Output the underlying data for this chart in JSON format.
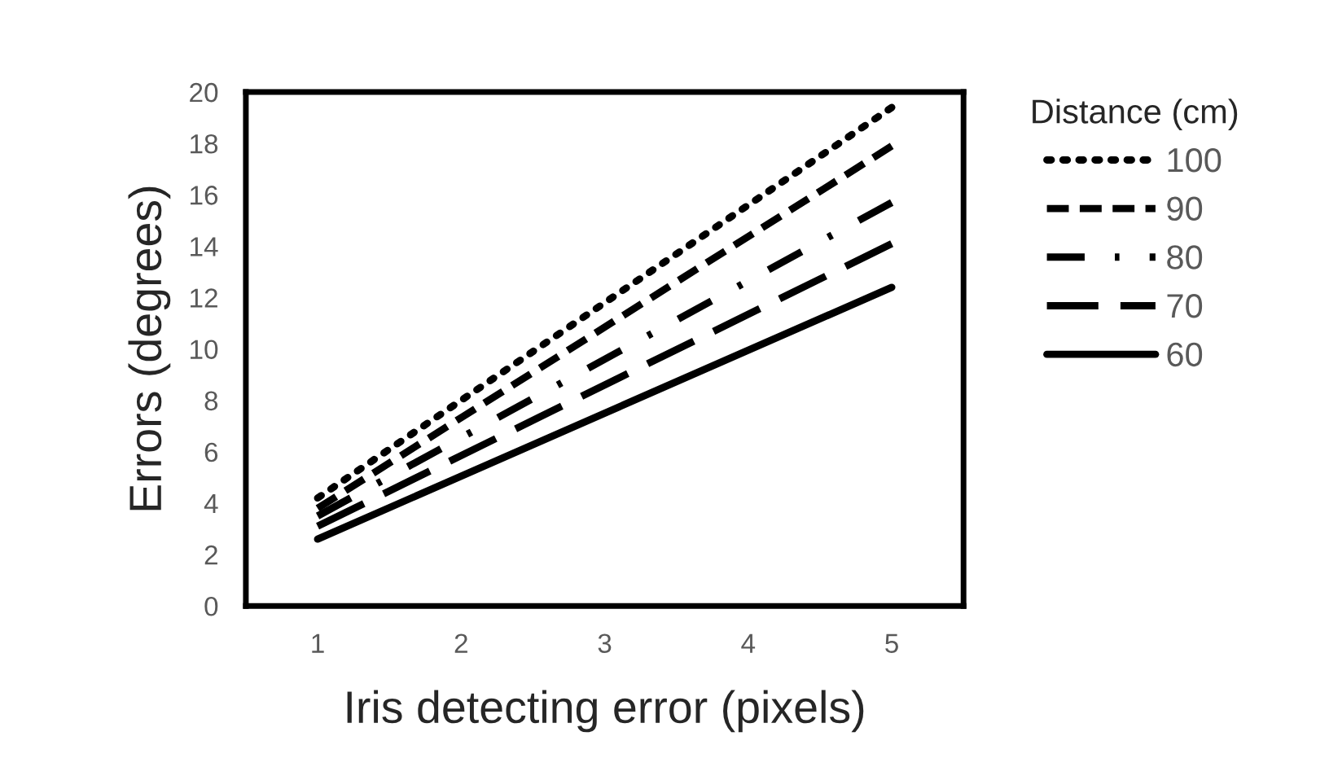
{
  "chart_data": {
    "type": "line",
    "xlabel": "Iris detecting error (pixels)",
    "ylabel": "Errors (degrees)",
    "legend_title": "Distance (cm)",
    "xlim": [
      0.5,
      5.5
    ],
    "xticks": [
      1,
      2,
      3,
      4,
      5
    ],
    "ylim": [
      0,
      20
    ],
    "yticks": [
      0,
      2,
      4,
      6,
      8,
      10,
      12,
      14,
      16,
      18,
      20
    ],
    "grid": false,
    "legend": "right",
    "x": [
      1,
      5
    ],
    "series": [
      {
        "name": "100",
        "color": "#000000",
        "line_style": "dotted",
        "values": [
          4.2,
          19.4
        ]
      },
      {
        "name": "90",
        "color": "#000000",
        "line_style": "dashed",
        "values": [
          3.8,
          17.9
        ]
      },
      {
        "name": "80",
        "color": "#000000",
        "line_style": "dashdot",
        "values": [
          3.5,
          15.7
        ]
      },
      {
        "name": "70",
        "color": "#000000",
        "line_style": "longdash",
        "values": [
          3.1,
          14.1
        ]
      },
      {
        "name": "60",
        "color": "#000000",
        "line_style": "solid",
        "values": [
          2.6,
          12.4
        ]
      }
    ]
  }
}
